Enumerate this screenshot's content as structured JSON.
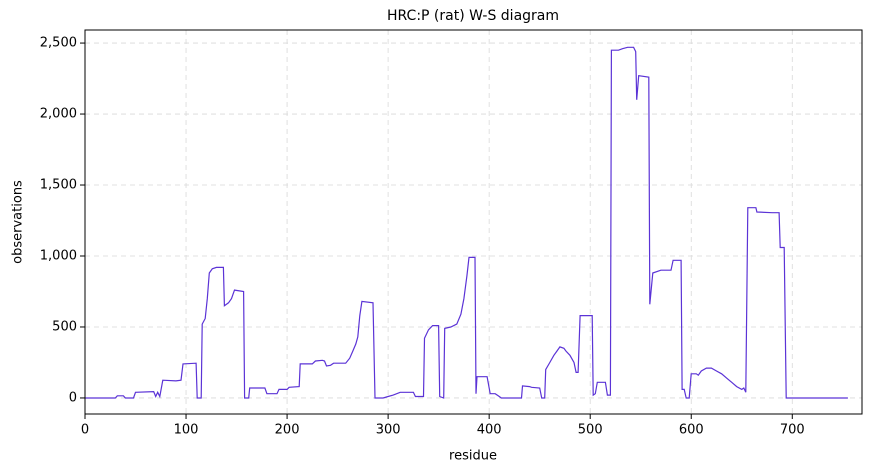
{
  "chart_data": {
    "type": "line",
    "title": "HRC:P (rat) W-S diagram",
    "x_label": "residue",
    "y_label": "observations",
    "color": "#5b33d6",
    "grid": true,
    "xlim": [
      0,
      769
    ],
    "ylim": [
      -113,
      2592
    ],
    "xticks": [
      0,
      100,
      200,
      300,
      400,
      500,
      600,
      700
    ],
    "yticks": [
      0,
      500,
      {
        "value": 1000,
        "label": "1,000"
      },
      {
        "value": 1500,
        "label": "1,500"
      },
      {
        "value": 2000,
        "label": "2,000"
      },
      {
        "value": 2500,
        "label": "2,500"
      }
    ],
    "x": [
      0,
      30,
      32,
      38,
      40,
      48,
      50,
      68,
      70,
      72,
      74,
      77,
      90,
      95,
      97,
      110,
      111,
      115,
      116,
      119,
      121,
      123,
      126,
      130,
      137,
      138,
      142,
      145,
      148,
      157,
      158,
      162,
      163,
      178,
      180,
      190,
      192,
      200,
      202,
      212,
      213,
      225,
      228,
      235,
      237,
      239,
      243,
      246,
      258,
      262,
      265,
      268,
      270,
      272,
      274,
      285,
      287,
      295,
      300,
      305,
      312,
      325,
      327,
      335,
      336,
      340,
      344,
      350,
      351,
      355,
      356,
      362,
      368,
      372,
      375,
      378,
      380,
      386,
      387,
      388,
      398,
      401,
      406,
      410,
      412,
      432,
      433,
      440,
      442,
      450,
      452,
      455,
      456,
      460,
      464,
      467,
      470,
      474,
      476,
      480,
      484,
      486,
      488,
      490,
      502,
      503,
      505,
      507,
      515,
      517,
      520,
      521,
      528,
      532,
      537,
      543,
      545,
      546,
      548,
      558,
      559,
      562,
      570,
      580,
      582,
      590,
      591,
      593,
      595,
      598,
      600,
      605,
      607,
      610,
      615,
      620,
      625,
      630,
      635,
      640,
      645,
      650,
      652,
      654,
      656,
      664,
      665,
      680,
      687,
      688,
      692,
      694,
      755
    ],
    "values": [
      0,
      0,
      15,
      15,
      0,
      0,
      40,
      45,
      10,
      40,
      10,
      125,
      120,
      125,
      240,
      245,
      0,
      0,
      520,
      560,
      700,
      880,
      910,
      920,
      920,
      650,
      670,
      700,
      760,
      750,
      0,
      0,
      70,
      70,
      30,
      30,
      60,
      60,
      75,
      80,
      240,
      240,
      260,
      265,
      260,
      225,
      230,
      245,
      245,
      280,
      330,
      380,
      430,
      580,
      680,
      670,
      0,
      0,
      10,
      20,
      40,
      40,
      10,
      10,
      420,
      480,
      510,
      510,
      10,
      0,
      490,
      500,
      520,
      590,
      700,
      860,
      990,
      990,
      30,
      150,
      150,
      30,
      30,
      10,
      0,
      0,
      85,
      80,
      75,
      70,
      0,
      0,
      200,
      250,
      300,
      330,
      360,
      350,
      330,
      300,
      250,
      180,
      180,
      580,
      580,
      20,
      30,
      110,
      110,
      20,
      20,
      2450,
      2450,
      2460,
      2470,
      2470,
      2440,
      2100,
      2270,
      2260,
      660,
      880,
      900,
      900,
      970,
      970,
      60,
      60,
      0,
      0,
      170,
      170,
      160,
      190,
      210,
      210,
      190,
      170,
      140,
      110,
      80,
      60,
      70,
      40,
      1340,
      1340,
      1310,
      1305,
      1305,
      1060,
      1060,
      0,
      0
    ]
  }
}
